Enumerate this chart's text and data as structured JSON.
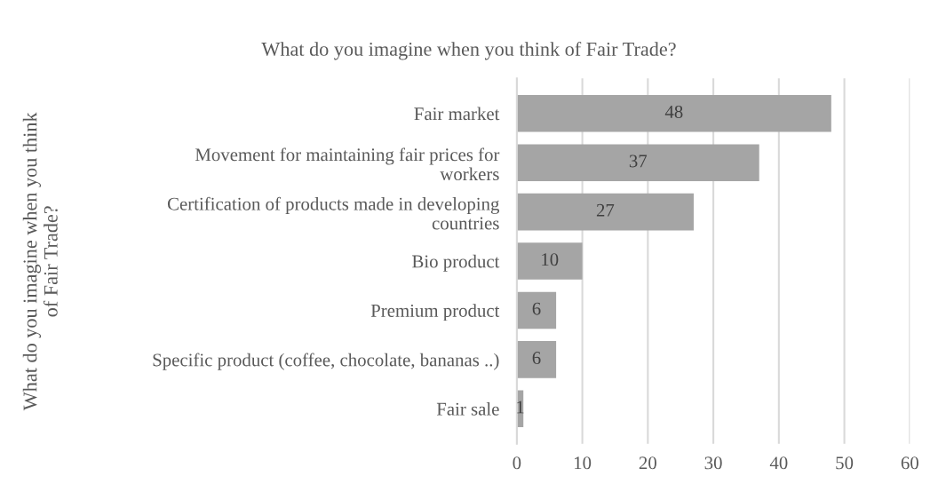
{
  "chart_data": {
    "type": "bar",
    "orientation": "horizontal",
    "title": "What do you imagine when you think of Fair Trade?",
    "ylabel": "What do you imagine when you think\nof Fair Trade?",
    "categories": [
      "Fair market",
      "Movement for maintaining fair prices for\nworkers",
      "Certification of products made in developing\ncountries",
      "Bio product",
      "Premium product",
      "Specific product (coffee, chocolate, bananas ..)",
      "Fair sale"
    ],
    "values": [
      48,
      37,
      27,
      10,
      6,
      6,
      1
    ],
    "color": "#a5a5a5",
    "xlim": [
      0,
      60
    ],
    "xticks": [
      0,
      10,
      20,
      30,
      40,
      50,
      60
    ],
    "grid": "x",
    "data_labels": true
  }
}
